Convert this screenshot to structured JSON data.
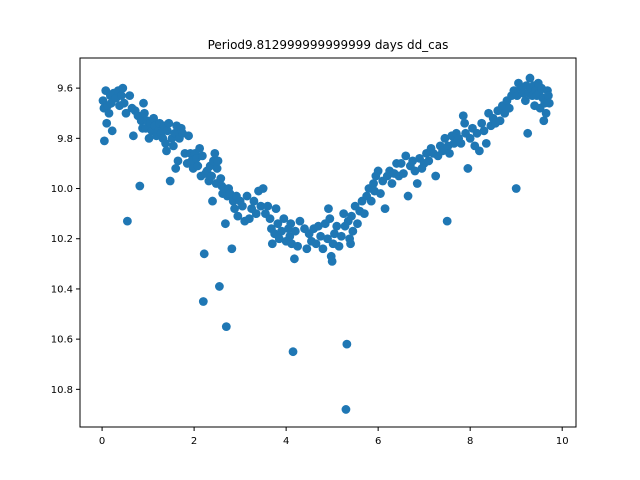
{
  "chart_data": {
    "type": "scatter",
    "title": "Period9.812999999999999 days dd_cas",
    "xlabel": "",
    "ylabel": "",
    "xlim": [
      -0.48,
      10.3
    ],
    "ylim": [
      10.95,
      9.48
    ],
    "y_inverted": true,
    "grid": false,
    "x_ticks": [
      0,
      2,
      4,
      6,
      8,
      10
    ],
    "y_ticks": [
      9.6,
      9.8,
      10.0,
      10.2,
      10.4,
      10.6,
      10.8
    ],
    "x_tick_labels": [
      "0",
      "2",
      "4",
      "6",
      "8",
      "10"
    ],
    "y_tick_labels": [
      "9.6",
      "9.8",
      "10.0",
      "10.2",
      "10.4",
      "10.6",
      "10.8"
    ],
    "marker_color": "#1f77b4",
    "series": [
      {
        "points": [
          [
            0.02,
            9.65
          ],
          [
            0.04,
            9.68
          ],
          [
            0.05,
            9.81
          ],
          [
            0.08,
            9.61
          ],
          [
            0.1,
            9.74
          ],
          [
            0.12,
            9.67
          ],
          [
            0.15,
            9.7
          ],
          [
            0.18,
            9.63
          ],
          [
            0.2,
            9.66
          ],
          [
            0.22,
            9.77
          ],
          [
            0.25,
            9.62
          ],
          [
            0.3,
            9.64
          ],
          [
            0.35,
            9.61
          ],
          [
            0.38,
            9.67
          ],
          [
            0.42,
            9.63
          ],
          [
            0.45,
            9.6
          ],
          [
            0.48,
            9.66
          ],
          [
            0.52,
            9.7
          ],
          [
            0.55,
            10.13
          ],
          [
            0.6,
            9.63
          ],
          [
            0.65,
            9.68
          ],
          [
            0.68,
            9.79
          ],
          [
            0.72,
            9.69
          ],
          [
            0.78,
            9.71
          ],
          [
            0.82,
            9.99
          ],
          [
            0.85,
            9.73
          ],
          [
            0.88,
            9.76
          ],
          [
            0.9,
            9.66
          ],
          [
            0.92,
            9.7
          ],
          [
            0.95,
            9.76
          ],
          [
            0.98,
            9.73
          ],
          [
            1.02,
            9.8
          ],
          [
            1.05,
            9.74
          ],
          [
            1.08,
            9.77
          ],
          [
            1.12,
            9.72
          ],
          [
            1.15,
            9.75
          ],
          [
            1.18,
            9.79
          ],
          [
            1.22,
            9.77
          ],
          [
            1.25,
            9.74
          ],
          [
            1.28,
            9.78
          ],
          [
            1.32,
            9.8
          ],
          [
            1.35,
            9.75
          ],
          [
            1.38,
            9.82
          ],
          [
            1.4,
            9.85
          ],
          [
            1.42,
            9.77
          ],
          [
            1.45,
            9.74
          ],
          [
            1.48,
            9.97
          ],
          [
            1.52,
            9.8
          ],
          [
            1.55,
            9.83
          ],
          [
            1.58,
            9.78
          ],
          [
            1.6,
            9.92
          ],
          [
            1.62,
            9.75
          ],
          [
            1.65,
            9.89
          ],
          [
            1.68,
            9.8
          ],
          [
            1.72,
            9.76
          ],
          [
            1.75,
            9.78
          ],
          [
            1.8,
            9.86
          ],
          [
            1.85,
            9.9
          ],
          [
            1.88,
            9.79
          ],
          [
            1.92,
            9.86
          ],
          [
            1.95,
            9.89
          ],
          [
            1.98,
            9.92
          ],
          [
            2.02,
            9.86
          ],
          [
            2.05,
            9.88
          ],
          [
            2.08,
            9.91
          ],
          [
            2.12,
            9.84
          ],
          [
            2.15,
            9.95
          ],
          [
            2.18,
            9.87
          ],
          [
            2.2,
            10.45
          ],
          [
            2.22,
            10.26
          ],
          [
            2.25,
            9.94
          ],
          [
            2.28,
            9.93
          ],
          [
            2.32,
            9.97
          ],
          [
            2.35,
            9.91
          ],
          [
            2.38,
            9.95
          ],
          [
            2.4,
            10.05
          ],
          [
            2.42,
            9.89
          ],
          [
            2.45,
            9.86
          ],
          [
            2.48,
            9.98
          ],
          [
            2.5,
            9.92
          ],
          [
            2.52,
            9.89
          ],
          [
            2.55,
            10.39
          ],
          [
            2.58,
            9.96
          ],
          [
            2.6,
            9.99
          ],
          [
            2.62,
            10.02
          ],
          [
            2.65,
            10.0
          ],
          [
            2.68,
            10.14
          ],
          [
            2.7,
            10.55
          ],
          [
            2.72,
            10.03
          ],
          [
            2.75,
            10.0
          ],
          [
            2.78,
            10.02
          ],
          [
            2.82,
            10.24
          ],
          [
            2.85,
            10.05
          ],
          [
            2.88,
            10.08
          ],
          [
            2.92,
            10.03
          ],
          [
            2.95,
            10.11
          ],
          [
            3.0,
            10.05
          ],
          [
            3.05,
            10.07
          ],
          [
            3.1,
            10.13
          ],
          [
            3.15,
            10.03
          ],
          [
            3.2,
            10.12
          ],
          [
            3.25,
            10.08
          ],
          [
            3.3,
            10.05
          ],
          [
            3.35,
            10.1
          ],
          [
            3.4,
            10.01
          ],
          [
            3.45,
            10.07
          ],
          [
            3.5,
            10.0
          ],
          [
            3.55,
            10.1
          ],
          [
            3.6,
            10.07
          ],
          [
            3.65,
            10.12
          ],
          [
            3.68,
            10.16
          ],
          [
            3.7,
            10.22
          ],
          [
            3.75,
            10.18
          ],
          [
            3.78,
            10.08
          ],
          [
            3.82,
            10.14
          ],
          [
            3.85,
            10.2
          ],
          [
            3.9,
            10.17
          ],
          [
            3.95,
            10.12
          ],
          [
            4.0,
            10.21
          ],
          [
            4.05,
            10.16
          ],
          [
            4.08,
            10.19
          ],
          [
            4.1,
            10.14
          ],
          [
            4.12,
            10.22
          ],
          [
            4.15,
            10.65
          ],
          [
            4.18,
            10.28
          ],
          [
            4.2,
            10.17
          ],
          [
            4.25,
            10.23
          ],
          [
            4.3,
            10.13
          ],
          [
            4.4,
            10.16
          ],
          [
            4.45,
            10.24
          ],
          [
            4.5,
            10.18
          ],
          [
            4.55,
            10.21
          ],
          [
            4.6,
            10.16
          ],
          [
            4.65,
            10.22
          ],
          [
            4.7,
            10.15
          ],
          [
            4.75,
            10.19
          ],
          [
            4.8,
            10.24
          ],
          [
            4.85,
            10.14
          ],
          [
            4.9,
            10.2
          ],
          [
            4.92,
            10.08
          ],
          [
            4.95,
            10.12
          ],
          [
            4.98,
            10.27
          ],
          [
            5.0,
            10.29
          ],
          [
            5.02,
            10.22
          ],
          [
            5.05,
            10.18
          ],
          [
            5.1,
            10.15
          ],
          [
            5.15,
            10.23
          ],
          [
            5.2,
            10.19
          ],
          [
            5.25,
            10.1
          ],
          [
            5.28,
            10.15
          ],
          [
            5.3,
            10.88
          ],
          [
            5.32,
            10.62
          ],
          [
            5.35,
            10.13
          ],
          [
            5.38,
            10.2
          ],
          [
            5.4,
            10.22
          ],
          [
            5.42,
            10.11
          ],
          [
            5.45,
            10.17
          ],
          [
            5.5,
            10.07
          ],
          [
            5.55,
            10.14
          ],
          [
            5.6,
            10.09
          ],
          [
            5.65,
            10.05
          ],
          [
            5.7,
            10.1
          ],
          [
            5.75,
            10.03
          ],
          [
            5.8,
            10.0
          ],
          [
            5.85,
            10.05
          ],
          [
            5.9,
            9.98
          ],
          [
            5.92,
            10.01
          ],
          [
            5.95,
            9.95
          ],
          [
            6.0,
            9.93
          ],
          [
            6.05,
            10.02
          ],
          [
            6.1,
            9.97
          ],
          [
            6.15,
            10.08
          ],
          [
            6.2,
            9.95
          ],
          [
            6.25,
            9.93
          ],
          [
            6.3,
            9.98
          ],
          [
            6.35,
            9.94
          ],
          [
            6.4,
            9.9
          ],
          [
            6.45,
            9.95
          ],
          [
            6.5,
            9.9
          ],
          [
            6.55,
            9.94
          ],
          [
            6.6,
            9.87
          ],
          [
            6.65,
            10.03
          ],
          [
            6.7,
            9.91
          ],
          [
            6.75,
            9.89
          ],
          [
            6.8,
            9.93
          ],
          [
            6.85,
            9.98
          ],
          [
            6.9,
            9.88
          ],
          [
            6.95,
            9.92
          ],
          [
            7.0,
            9.9
          ],
          [
            7.05,
            9.86
          ],
          [
            7.1,
            9.89
          ],
          [
            7.15,
            9.84
          ],
          [
            7.2,
            9.86
          ],
          [
            7.25,
            9.95
          ],
          [
            7.3,
            9.87
          ],
          [
            7.35,
            9.83
          ],
          [
            7.4,
            9.85
          ],
          [
            7.45,
            9.8
          ],
          [
            7.5,
            10.13
          ],
          [
            7.52,
            9.83
          ],
          [
            7.55,
            9.86
          ],
          [
            7.6,
            9.79
          ],
          [
            7.65,
            9.82
          ],
          [
            7.7,
            9.78
          ],
          [
            7.75,
            9.8
          ],
          [
            7.8,
            9.82
          ],
          [
            7.85,
            9.71
          ],
          [
            7.88,
            9.74
          ],
          [
            7.9,
            9.78
          ],
          [
            7.95,
            9.92
          ],
          [
            8.0,
            9.8
          ],
          [
            8.05,
            9.76
          ],
          [
            8.1,
            9.83
          ],
          [
            8.15,
            9.78
          ],
          [
            8.2,
            9.85
          ],
          [
            8.25,
            9.74
          ],
          [
            8.3,
            9.77
          ],
          [
            8.35,
            9.82
          ],
          [
            8.4,
            9.7
          ],
          [
            8.45,
            9.75
          ],
          [
            8.5,
            9.72
          ],
          [
            8.55,
            9.74
          ],
          [
            8.6,
            9.69
          ],
          [
            8.65,
            9.73
          ],
          [
            8.7,
            9.67
          ],
          [
            8.75,
            9.7
          ],
          [
            8.8,
            9.65
          ],
          [
            8.85,
            9.68
          ],
          [
            8.9,
            9.63
          ],
          [
            8.95,
            9.61
          ],
          [
            9.0,
            10.0
          ],
          [
            9.02,
            9.63
          ],
          [
            9.05,
            9.58
          ],
          [
            9.1,
            9.6
          ],
          [
            9.15,
            9.62
          ],
          [
            9.2,
            9.65
          ],
          [
            9.22,
            9.59
          ],
          [
            9.25,
            9.78
          ],
          [
            9.28,
            9.62
          ],
          [
            9.3,
            9.56
          ],
          [
            9.32,
            9.6
          ],
          [
            9.35,
            9.63
          ],
          [
            9.38,
            9.59
          ],
          [
            9.4,
            9.67
          ],
          [
            9.42,
            9.61
          ],
          [
            9.45,
            9.63
          ],
          [
            9.48,
            9.58
          ],
          [
            9.5,
            9.62
          ],
          [
            9.52,
            9.68
          ],
          [
            9.55,
            9.6
          ],
          [
            9.58,
            9.64
          ],
          [
            9.6,
            9.73
          ],
          [
            9.62,
            9.66
          ],
          [
            9.65,
            9.7
          ],
          [
            9.68,
            9.61
          ],
          [
            9.7,
            9.63
          ],
          [
            9.72,
            9.66
          ]
        ]
      }
    ]
  }
}
